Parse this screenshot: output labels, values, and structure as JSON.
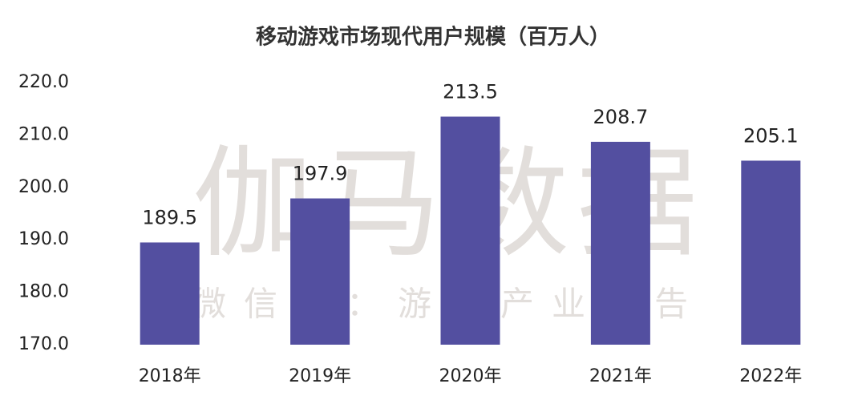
{
  "chart_data": {
    "type": "bar",
    "title": "移动游戏市场现代用户规模（百万人）",
    "categories": [
      "2018年",
      "2019年",
      "2020年",
      "2021年",
      "2022年"
    ],
    "values": [
      189.5,
      197.9,
      213.5,
      208.7,
      205.1
    ],
    "color": "#534fa0",
    "ylim": [
      170,
      220
    ],
    "yticks": [
      {
        "value": 170,
        "label": "170.0"
      },
      {
        "value": 180,
        "label": "180.0"
      },
      {
        "value": 190,
        "label": "190.0"
      },
      {
        "value": 200,
        "label": "200.0"
      },
      {
        "value": 210,
        "label": "210.0"
      },
      {
        "value": 220,
        "label": "220.0"
      }
    ],
    "grid": false,
    "watermark": [
      "伽马数据",
      "微信号：游戏产业报告"
    ]
  }
}
